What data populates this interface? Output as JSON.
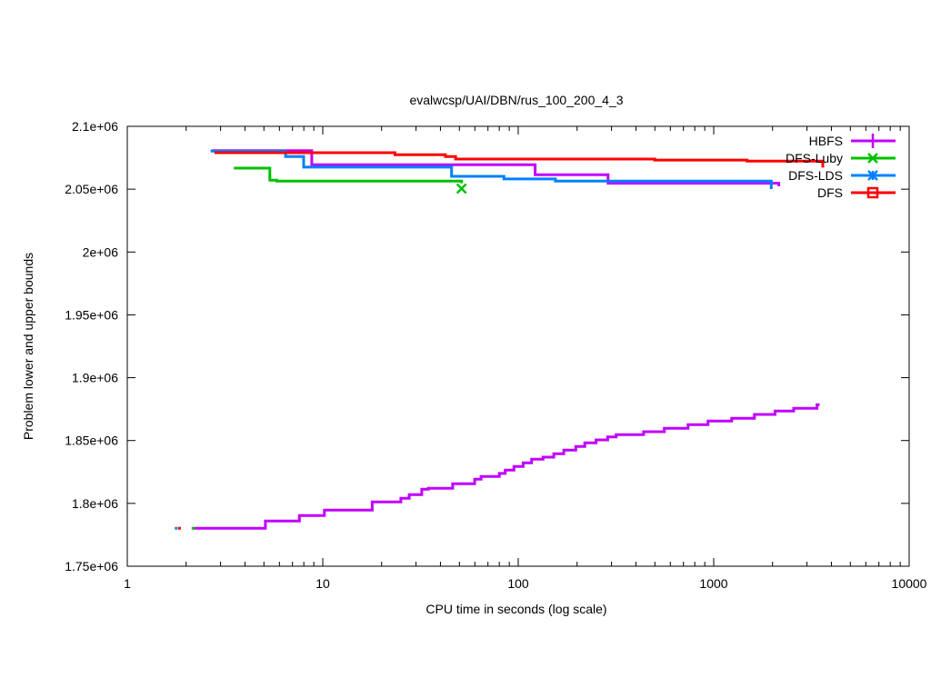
{
  "chart_data": {
    "type": "line",
    "title": "evalwcsp/UAI/DBN/rus_100_200_4_3",
    "xlabel": "CPU time in seconds (log scale)",
    "ylabel": "Problem lower and upper bounds",
    "xscale": "log",
    "xlim": [
      1,
      10000
    ],
    "ylim": [
      1750000,
      2100000
    ],
    "xticks": [
      1,
      10,
      100,
      1000,
      10000
    ],
    "xtick_labels": [
      "1",
      "10",
      "100",
      "1000",
      "10000"
    ],
    "yticks": [
      1750000,
      1800000,
      1850000,
      1900000,
      1950000,
      2000000,
      2050000,
      2100000
    ],
    "ytick_labels": [
      "1.75e+06",
      "1.8e+06",
      "1.85e+06",
      "1.9e+06",
      "1.95e+06",
      "2e+06",
      "2.05e+06",
      "2.1e+06"
    ],
    "grid": false,
    "legend_position": "top-right",
    "series": [
      {
        "name": "HBFS",
        "color": "#c000ff",
        "marker": "plus",
        "upper": [
          [
            2.7,
            2080700
          ],
          [
            8.78,
            2069400
          ],
          [
            122,
            2061500
          ],
          [
            288,
            2054700
          ],
          [
            2152,
            2052300
          ]
        ],
        "lower": [
          [
            2.19,
            1780200
          ],
          [
            5.09,
            1786000
          ],
          [
            7.59,
            1790300
          ],
          [
            10.2,
            1794600
          ],
          [
            17.9,
            1801100
          ],
          [
            25.1,
            1804000
          ],
          [
            27.7,
            1806900
          ],
          [
            32.1,
            1811300
          ],
          [
            34.7,
            1812000
          ],
          [
            46.2,
            1815600
          ],
          [
            59.9,
            1819200
          ],
          [
            64.5,
            1821400
          ],
          [
            80,
            1823800
          ],
          [
            85.8,
            1826500
          ],
          [
            95.1,
            1829300
          ],
          [
            106,
            1832200
          ],
          [
            117,
            1835100
          ],
          [
            134,
            1836800
          ],
          [
            152,
            1839500
          ],
          [
            171,
            1842400
          ],
          [
            197,
            1845300
          ],
          [
            219,
            1848100
          ],
          [
            250,
            1850500
          ],
          [
            287,
            1852900
          ],
          [
            317,
            1854700
          ],
          [
            438,
            1857000
          ],
          [
            559,
            1859700
          ],
          [
            739,
            1862600
          ],
          [
            935,
            1865500
          ],
          [
            1236,
            1867700
          ],
          [
            1616,
            1870800
          ],
          [
            2061,
            1873500
          ],
          [
            2567,
            1875600
          ],
          [
            3377,
            1878500
          ],
          [
            3428,
            1879500
          ]
        ]
      },
      {
        "name": "DFS-Luby",
        "color": "#00c000",
        "marker": "cross",
        "upper": [
          [
            3.51,
            2066700
          ],
          [
            5.36,
            2057100
          ],
          [
            5.81,
            2056400
          ],
          [
            51.3,
            2054700
          ]
        ],
        "lower": [
          [
            2.17,
            1780200
          ]
        ],
        "end_marker": [
          51.3,
          2050500
        ]
      },
      {
        "name": "DFS-LDS",
        "color": "#0080ff",
        "marker": "star",
        "upper": [
          [
            2.67,
            2080300
          ],
          [
            6.45,
            2075900
          ],
          [
            7.99,
            2067500
          ],
          [
            45.6,
            2060200
          ],
          [
            84.5,
            2058100
          ],
          [
            155,
            2056400
          ],
          [
            1970,
            2050100
          ]
        ],
        "lower": [
          [
            1.78,
            1780200
          ]
        ]
      },
      {
        "name": "DFS",
        "color": "#ff0000",
        "marker": "square",
        "upper": [
          [
            2.79,
            2079000
          ],
          [
            23.4,
            2077400
          ],
          [
            42.4,
            2075900
          ],
          [
            47.8,
            2074000
          ],
          [
            499,
            2073200
          ],
          [
            1482,
            2072300
          ],
          [
            3615,
            2067200
          ]
        ],
        "lower": [
          [
            1.85,
            1780200
          ]
        ]
      }
    ]
  }
}
